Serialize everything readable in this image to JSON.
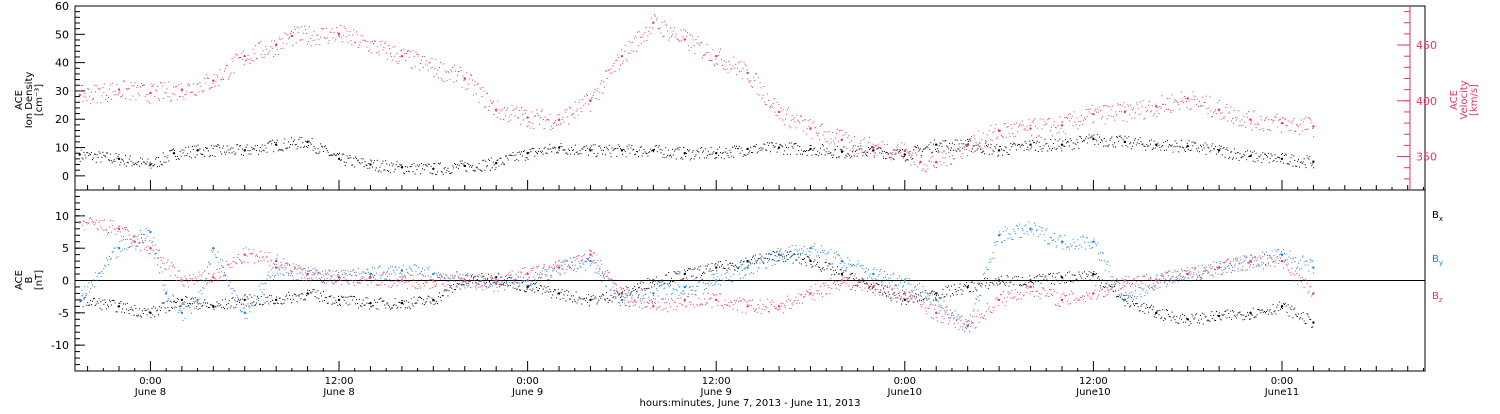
{
  "chart_data": [
    {
      "type": "scatter",
      "panel": "top",
      "title": "",
      "ylabel_lines": [
        "ACE",
        "Ion Density",
        "[cm⁻³]"
      ],
      "ylabel_right_lines": [
        "ACE",
        "Velocity",
        "[km/s]"
      ],
      "xlabel": "hours:minutes, June  7, 2013 - June 11, 2013",
      "ylim": [
        -5,
        60
      ],
      "yticks": [
        0,
        10,
        20,
        30,
        40,
        50,
        60
      ],
      "ylim_right": [
        320,
        485
      ],
      "yticks_right": [
        350,
        400,
        450
      ],
      "x_time_range_hours": [
        -4.8,
        81.1
      ],
      "series": [
        {
          "name": "",
          "axis": "left",
          "color": "#000000",
          "points": [
            [
              -4.5,
              7.5
            ],
            [
              -2,
              6
            ],
            [
              0,
              4
            ],
            [
              1.5,
              8
            ],
            [
              3,
              9
            ],
            [
              6,
              9
            ],
            [
              8,
              11
            ],
            [
              10,
              12
            ],
            [
              12,
              6
            ],
            [
              14,
              4
            ],
            [
              16,
              3
            ],
            [
              18,
              2.5
            ],
            [
              20,
              3.5
            ],
            [
              22,
              4.5
            ],
            [
              24,
              8
            ],
            [
              26,
              10
            ],
            [
              28,
              9
            ],
            [
              30,
              9
            ],
            [
              32,
              9
            ],
            [
              34,
              8
            ],
            [
              36,
              8
            ],
            [
              38,
              9.5
            ],
            [
              40,
              10
            ],
            [
              42,
              9.5
            ],
            [
              44,
              8.5
            ],
            [
              46,
              9
            ],
            [
              48,
              7.5
            ],
            [
              50,
              11
            ],
            [
              52,
              11
            ],
            [
              54,
              9
            ],
            [
              56,
              11
            ],
            [
              58,
              11
            ],
            [
              60,
              13
            ],
            [
              62,
              12
            ],
            [
              64,
              11
            ],
            [
              66,
              10.5
            ],
            [
              68,
              9
            ],
            [
              70,
              7
            ],
            [
              72,
              6
            ],
            [
              74,
              5
            ]
          ]
        },
        {
          "name": "",
          "axis": "right",
          "color": "#e8345e",
          "points": [
            [
              -4.5,
              405
            ],
            [
              -2,
              410
            ],
            [
              0,
              407
            ],
            [
              2,
              410
            ],
            [
              4,
              418
            ],
            [
              6,
              440
            ],
            [
              8,
              450
            ],
            [
              9,
              458
            ],
            [
              12,
              460
            ],
            [
              16,
              440
            ],
            [
              20,
              420
            ],
            [
              22,
              392
            ],
            [
              24,
              385
            ],
            [
              26,
              383
            ],
            [
              28,
              400
            ],
            [
              30,
              440
            ],
            [
              32,
              470
            ],
            [
              34,
              455
            ],
            [
              36,
              440
            ],
            [
              38,
              425
            ],
            [
              40,
              390
            ],
            [
              42,
              375
            ],
            [
              44,
              365
            ],
            [
              46,
              358
            ],
            [
              48,
              355
            ],
            [
              49,
              345
            ],
            [
              50,
              345
            ],
            [
              52,
              360
            ],
            [
              54,
              373
            ],
            [
              56,
              375
            ],
            [
              58,
              378
            ],
            [
              60,
              388
            ],
            [
              62,
              390
            ],
            [
              64,
              395
            ],
            [
              66,
              402
            ],
            [
              68,
              392
            ],
            [
              70,
              383
            ],
            [
              72,
              380
            ],
            [
              74,
              377
            ]
          ]
        }
      ]
    },
    {
      "type": "scatter",
      "panel": "bottom",
      "title": "",
      "ylabel_lines": [
        "ACE",
        "B",
        "[nT]"
      ],
      "ylim": [
        -14,
        14
      ],
      "yticks": [
        -10,
        -5,
        0,
        5,
        10
      ],
      "zero_line": true,
      "x_time_range_hours": [
        -4.8,
        81.1
      ],
      "xtick_times": [
        "0:00",
        "12:00",
        "0:00",
        "12:00",
        "0:00",
        "12:00",
        "0:00"
      ],
      "xtick_dates": [
        "June 8",
        "June 8",
        "June 9",
        "June 9",
        "June10",
        "June10",
        "June11"
      ],
      "xtick_hours": [
        0,
        12,
        24,
        36,
        48,
        60,
        72
      ],
      "series": [
        {
          "name": "Bx",
          "color": "#000000",
          "points": [
            [
              -4.5,
              -3
            ],
            [
              -2,
              -4
            ],
            [
              0,
              -5
            ],
            [
              2,
              -3
            ],
            [
              4,
              -4
            ],
            [
              6,
              -3
            ],
            [
              8,
              -3
            ],
            [
              10,
              -2
            ],
            [
              12,
              -3
            ],
            [
              14,
              -3.5
            ],
            [
              16,
              -3.5
            ],
            [
              18,
              -3
            ],
            [
              20,
              0
            ],
            [
              22,
              0.5
            ],
            [
              24,
              -1
            ],
            [
              26,
              -2
            ],
            [
              28,
              -3
            ],
            [
              30,
              -2
            ],
            [
              32,
              0
            ],
            [
              34,
              1
            ],
            [
              36,
              2
            ],
            [
              38,
              3
            ],
            [
              40,
              4
            ],
            [
              42,
              3
            ],
            [
              44,
              1
            ],
            [
              46,
              -1
            ],
            [
              48,
              -3
            ],
            [
              50,
              -2
            ],
            [
              52,
              -1
            ],
            [
              54,
              0
            ],
            [
              56,
              0
            ],
            [
              58,
              0.5
            ],
            [
              60,
              1
            ],
            [
              62,
              -3
            ],
            [
              64,
              -5
            ],
            [
              66,
              -6
            ],
            [
              68,
              -5.5
            ],
            [
              70,
              -5
            ],
            [
              72,
              -4
            ],
            [
              74,
              -6.5
            ]
          ]
        },
        {
          "name": "By",
          "color": "#1f7fe0",
          "points": [
            [
              -4.5,
              -3
            ],
            [
              -2,
              5
            ],
            [
              0,
              7.5
            ],
            [
              1,
              -2
            ],
            [
              2,
              -5
            ],
            [
              3,
              -3
            ],
            [
              4,
              5
            ],
            [
              6,
              -5
            ],
            [
              8,
              2
            ],
            [
              10,
              1
            ],
            [
              12,
              0.5
            ],
            [
              14,
              1
            ],
            [
              16,
              1.5
            ],
            [
              18,
              1
            ],
            [
              20,
              0
            ],
            [
              22,
              -0.5
            ],
            [
              24,
              0
            ],
            [
              26,
              2
            ],
            [
              28,
              3
            ],
            [
              30,
              -3
            ],
            [
              32,
              -2
            ],
            [
              34,
              -1
            ],
            [
              36,
              0
            ],
            [
              38,
              2
            ],
            [
              40,
              4
            ],
            [
              42,
              5
            ],
            [
              44,
              3
            ],
            [
              46,
              1
            ],
            [
              48,
              0
            ],
            [
              50,
              -3
            ],
            [
              52,
              -7
            ],
            [
              54,
              7
            ],
            [
              56,
              8
            ],
            [
              58,
              6
            ],
            [
              60,
              6
            ],
            [
              62,
              -3
            ],
            [
              64,
              0
            ],
            [
              66,
              1
            ],
            [
              68,
              2
            ],
            [
              70,
              3
            ],
            [
              72,
              4
            ],
            [
              74,
              2
            ]
          ]
        },
        {
          "name": "Bz",
          "color": "#e8345e",
          "points": [
            [
              -4.5,
              9
            ],
            [
              -2,
              8
            ],
            [
              -1,
              6
            ],
            [
              0,
              5
            ],
            [
              2,
              0
            ],
            [
              4,
              0.5
            ],
            [
              6,
              4
            ],
            [
              8,
              3
            ],
            [
              10,
              1
            ],
            [
              12,
              0.5
            ],
            [
              14,
              0.5
            ],
            [
              16,
              0
            ],
            [
              18,
              0
            ],
            [
              20,
              0
            ],
            [
              22,
              0
            ],
            [
              24,
              1
            ],
            [
              26,
              2
            ],
            [
              28,
              4
            ],
            [
              30,
              -2
            ],
            [
              32,
              -4
            ],
            [
              34,
              -3
            ],
            [
              36,
              -3
            ],
            [
              38,
              -4
            ],
            [
              40,
              -4
            ],
            [
              42,
              -2
            ],
            [
              44,
              0
            ],
            [
              46,
              -1
            ],
            [
              48,
              -2
            ],
            [
              50,
              -5
            ],
            [
              52,
              -7
            ],
            [
              54,
              -3
            ],
            [
              56,
              -1
            ],
            [
              58,
              -3
            ],
            [
              60,
              -2
            ],
            [
              62,
              0
            ],
            [
              64,
              0
            ],
            [
              66,
              1
            ],
            [
              68,
              2
            ],
            [
              70,
              3
            ],
            [
              72,
              3
            ],
            [
              74,
              -2
            ]
          ]
        }
      ],
      "legend": [
        {
          "label": "B",
          "sub": "x",
          "color": "#000000"
        },
        {
          "label": "B",
          "sub": "y",
          "color": "#1f7fe0"
        },
        {
          "label": "B",
          "sub": "z",
          "color": "#e8345e"
        }
      ]
    }
  ]
}
